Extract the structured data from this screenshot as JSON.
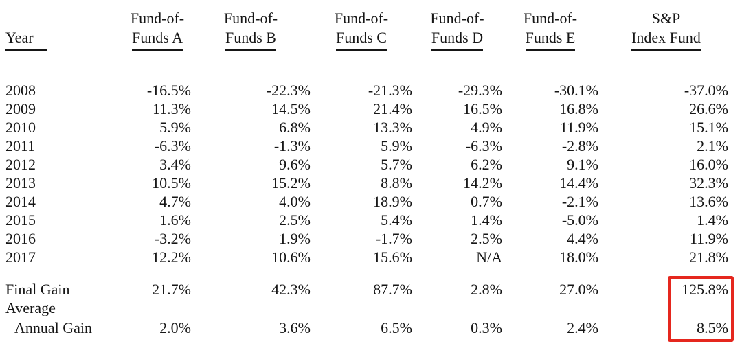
{
  "document": {
    "background": "#ffffff",
    "text_color": "#161616",
    "highlight_color": "#e5271e"
  },
  "table": {
    "header": {
      "year_label": "Year",
      "columns": [
        {
          "line1": "Fund-of-",
          "line2": "Funds A"
        },
        {
          "line1": "Fund-of-",
          "line2": "Funds B"
        },
        {
          "line1": "Fund-of-",
          "line2": "Funds C"
        },
        {
          "line1": "Fund-of-",
          "line2": "Funds D"
        },
        {
          "line1": "Fund-of-",
          "line2": "Funds E"
        },
        {
          "line1": "S&P",
          "line2": "Index Fund"
        }
      ]
    },
    "rows": [
      {
        "year": "2008",
        "values": [
          "-16.5%",
          "-22.3%",
          "-21.3%",
          "-29.3%",
          "-30.1%",
          "-37.0%"
        ]
      },
      {
        "year": "2009",
        "values": [
          "11.3%",
          "14.5%",
          "21.4%",
          "16.5%",
          "16.8%",
          "26.6%"
        ]
      },
      {
        "year": "2010",
        "values": [
          "5.9%",
          "6.8%",
          "13.3%",
          "4.9%",
          "11.9%",
          "15.1%"
        ]
      },
      {
        "year": "2011",
        "values": [
          "-6.3%",
          "-1.3%",
          "5.9%",
          "-6.3%",
          "-2.8%",
          "2.1%"
        ]
      },
      {
        "year": "2012",
        "values": [
          "3.4%",
          "9.6%",
          "5.7%",
          "6.2%",
          "9.1%",
          "16.0%"
        ]
      },
      {
        "year": "2013",
        "values": [
          "10.5%",
          "15.2%",
          "8.8%",
          "14.2%",
          "14.4%",
          "32.3%"
        ]
      },
      {
        "year": "2014",
        "values": [
          "4.7%",
          "4.0%",
          "18.9%",
          "0.7%",
          "-2.1%",
          "13.6%"
        ]
      },
      {
        "year": "2015",
        "values": [
          "1.6%",
          "2.5%",
          "5.4%",
          "1.4%",
          "-5.0%",
          "1.4%"
        ]
      },
      {
        "year": "2016",
        "values": [
          "-3.2%",
          "1.9%",
          "-1.7%",
          "2.5%",
          "4.4%",
          "11.9%"
        ]
      },
      {
        "year": "2017",
        "values": [
          "12.2%",
          "10.6%",
          "15.6%",
          "N/A",
          "18.0%",
          "21.8%"
        ]
      }
    ],
    "summary": {
      "final_gain": {
        "label": "Final Gain",
        "values": [
          "21.7%",
          "42.3%",
          "87.7%",
          "2.8%",
          "27.0%",
          "125.8%"
        ]
      },
      "average_label": "Average",
      "annual_gain": {
        "label": "Annual Gain",
        "values": [
          "2.0%",
          "3.6%",
          "6.5%",
          "0.3%",
          "2.4%",
          "8.5%"
        ]
      }
    }
  }
}
